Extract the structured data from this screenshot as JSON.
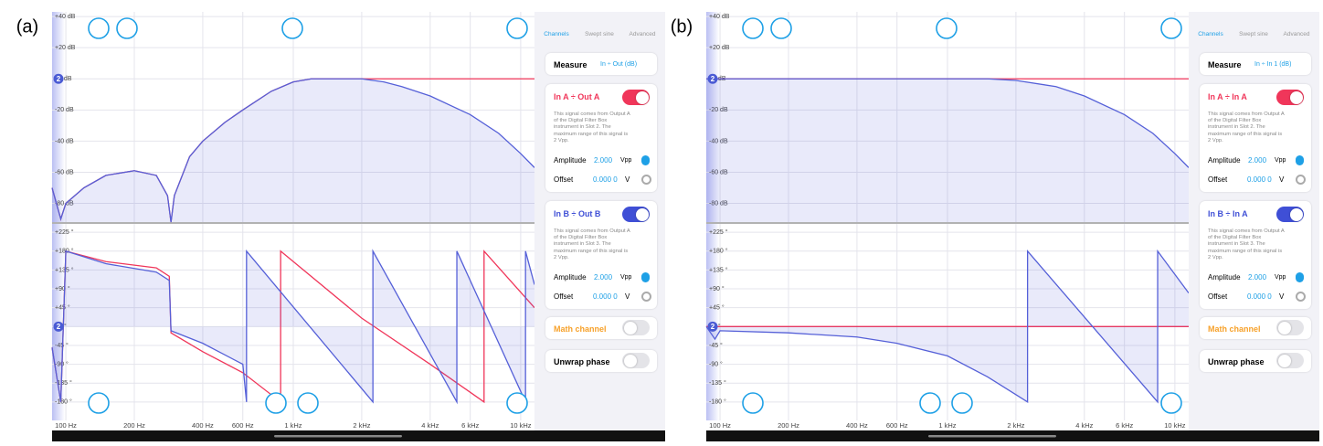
{
  "panels": [
    {
      "label": "(a)",
      "marker": "2",
      "magnitude": {
        "type": "line",
        "x_scale": "log",
        "xlim": [
          87,
          11500
        ],
        "ylim": [
          -92,
          43
        ],
        "grid": true,
        "yticks": [
          {
            "value": 40,
            "label": "+40 dB"
          },
          {
            "value": 20,
            "label": "+20 dB"
          },
          {
            "value": 0,
            "label": "+0 dB"
          },
          {
            "value": -20,
            "label": "-20 dB"
          },
          {
            "value": -40,
            "label": "-40 dB"
          },
          {
            "value": -60,
            "label": "-60 dB"
          },
          {
            "value": -80,
            "label": "-80 dB"
          }
        ],
        "series": [
          {
            "color": "#f0365a",
            "x": [
              87,
              95,
              100,
              120,
              150,
              200,
              250,
              280,
              290,
              300,
              350,
              400,
              500,
              600,
              800,
              1000,
              1200,
              1500,
              2000,
              11500
            ],
            "values": [
              -70,
              -90,
              -80,
              -70,
              -62,
              -59,
              -62,
              -75,
              -92,
              -75,
              -50,
              -40,
              -28,
              -20,
              -8,
              -2,
              0,
              0,
              0,
              0
            ]
          },
          {
            "color": "#5560d8",
            "fill": "bottom",
            "x": [
              87,
              95,
              100,
              120,
              150,
              200,
              250,
              280,
              290,
              300,
              350,
              400,
              500,
              600,
              800,
              1000,
              1200,
              1500,
              2000,
              2500,
              3000,
              4000,
              6000,
              8000,
              10000,
              11500
            ],
            "values": [
              -70,
              -90,
              -80,
              -70,
              -62,
              -59,
              -62,
              -75,
              -92,
              -75,
              -50,
              -40,
              -28,
              -20,
              -8,
              -2,
              0,
              0,
              0,
              -2,
              -5,
              -11,
              -23,
              -35,
              -48,
              -57
            ]
          }
        ]
      },
      "phase": {
        "type": "line",
        "x_scale": "log",
        "xlim": [
          87,
          11500
        ],
        "ylim": [
          -224,
          245
        ],
        "grid": true,
        "xticks": [
          {
            "value": 100,
            "label": "100 Hz"
          },
          {
            "value": 200,
            "label": "200 Hz"
          },
          {
            "value": 400,
            "label": "400 Hz"
          },
          {
            "value": 600,
            "label": "600 Hz"
          },
          {
            "value": 1000,
            "label": "1 kHz"
          },
          {
            "value": 2000,
            "label": "2 kHz"
          },
          {
            "value": 4000,
            "label": "4 kHz"
          },
          {
            "value": 6000,
            "label": "6 kHz"
          },
          {
            "value": 10000,
            "label": "10 kHz"
          }
        ],
        "yticks": [
          {
            "value": 225,
            "label": "+225 °"
          },
          {
            "value": 180,
            "label": "+180 °"
          },
          {
            "value": 135,
            "label": "+135 °"
          },
          {
            "value": 90,
            "label": "+90 °"
          },
          {
            "value": 45,
            "label": "+45 °"
          },
          {
            "value": 0,
            "label": "+0 °"
          },
          {
            "value": -45,
            "label": "-45 °"
          },
          {
            "value": -90,
            "label": "-90 °"
          },
          {
            "value": -135,
            "label": "-135 °"
          },
          {
            "value": -180,
            "label": "-180 °"
          }
        ],
        "series": [
          {
            "color": "#f0365a",
            "x": [
              87,
              95,
              100,
              150,
              250,
              285,
              290,
              400,
              600,
              880,
              880,
              2000,
              4000,
              6900,
              6900,
              11500
            ],
            "values": [
              -50,
              -180,
              180,
              155,
              140,
              120,
              -15,
              -60,
              -110,
              -180,
              180,
              20,
              -90,
              -180,
              180,
              45
            ]
          },
          {
            "color": "#5560d8",
            "fill": "zero",
            "x": [
              87,
              95,
              100,
              150,
              250,
              285,
              290,
              400,
              600,
              623,
              623,
              2240,
              2240,
              5240,
              5240,
              10500,
              10500,
              11500
            ],
            "values": [
              -50,
              -180,
              180,
              150,
              130,
              110,
              -10,
              -40,
              -90,
              -180,
              180,
              -180,
              180,
              -180,
              180,
              -180,
              180,
              100
            ]
          }
        ]
      },
      "sidebar": {
        "tabs": [
          "Channels",
          "Swept sine",
          "Advanced"
        ],
        "measure_label": "Measure",
        "measure_value": "In ÷ Out (dB)",
        "channels": [
          {
            "title": "In A ÷ Out A",
            "color": "#f0365a",
            "on": true,
            "description": [
              "This signal comes from Output A",
              "of the Digital Filter Box",
              "instrument in Slot 2. The",
              "maximum range of this signal is",
              "2 Vpp."
            ],
            "amplitude_label": "Amplitude",
            "amplitude": "2.000",
            "amplitude_unit": "Vpp",
            "offset_label": "Offset",
            "offset": "0.000 0",
            "offset_unit": "V"
          },
          {
            "title": "In B ÷ Out B",
            "color": "#3f4fd6",
            "on": true,
            "description": [
              "This signal comes from Output A",
              "of the Digital Filter Box",
              "instrument in Slot 3. The",
              "maximum range of this signal is",
              "2 Vpp."
            ],
            "amplitude_label": "Amplitude",
            "amplitude": "2.000",
            "amplitude_unit": "Vpp",
            "offset_label": "Offset",
            "offset": "0.000 0",
            "offset_unit": "V"
          }
        ],
        "math_label": "Math channel",
        "math_on": false,
        "unwrap_label": "Unwrap phase",
        "unwrap_on": false
      }
    },
    {
      "label": "(b)",
      "marker": "2",
      "magnitude": {
        "type": "line",
        "x_scale": "log",
        "xlim": [
          87,
          11500
        ],
        "ylim": [
          -92,
          43
        ],
        "grid": true,
        "yticks": [
          {
            "value": 40,
            "label": "+40 dB"
          },
          {
            "value": 20,
            "label": "+20 dB"
          },
          {
            "value": 0,
            "label": "+0 dB"
          },
          {
            "value": -20,
            "label": "-20 dB"
          },
          {
            "value": -40,
            "label": "-40 dB"
          },
          {
            "value": -60,
            "label": "-60 dB"
          },
          {
            "value": -80,
            "label": "-80 dB"
          }
        ],
        "series": [
          {
            "color": "#f0365a",
            "x": [
              87,
              11500
            ],
            "values": [
              0,
              0
            ]
          },
          {
            "color": "#5560d8",
            "fill": "bottom",
            "x": [
              87,
              1000,
              1500,
              2000,
              3000,
              4000,
              6000,
              8000,
              10000,
              11500
            ],
            "values": [
              0,
              0,
              0,
              -1,
              -5,
              -11,
              -23,
              -35,
              -48,
              -57
            ]
          }
        ]
      },
      "phase": {
        "type": "line",
        "x_scale": "log",
        "xlim": [
          87,
          11500
        ],
        "ylim": [
          -224,
          245
        ],
        "grid": true,
        "xticks": [
          {
            "value": 100,
            "label": "100 Hz"
          },
          {
            "value": 200,
            "label": "200 Hz"
          },
          {
            "value": 400,
            "label": "400 Hz"
          },
          {
            "value": 600,
            "label": "600 Hz"
          },
          {
            "value": 1000,
            "label": "1 kHz"
          },
          {
            "value": 2000,
            "label": "2 kHz"
          },
          {
            "value": 4000,
            "label": "4 kHz"
          },
          {
            "value": 6000,
            "label": "6 kHz"
          },
          {
            "value": 10000,
            "label": "10 kHz"
          }
        ],
        "yticks": [
          {
            "value": 225,
            "label": "+225 °"
          },
          {
            "value": 180,
            "label": "+180 °"
          },
          {
            "value": 135,
            "label": "+135 °"
          },
          {
            "value": 90,
            "label": "+90 °"
          },
          {
            "value": 45,
            "label": "+45 °"
          },
          {
            "value": 0,
            "label": "+0 °"
          },
          {
            "value": -45,
            "label": "-45 °"
          },
          {
            "value": -90,
            "label": "-90 °"
          },
          {
            "value": -135,
            "label": "-135 °"
          },
          {
            "value": -180,
            "label": "-180 °"
          }
        ],
        "series": [
          {
            "color": "#f0365a",
            "x": [
              87,
              11500
            ],
            "values": [
              0,
              0
            ]
          },
          {
            "color": "#5560d8",
            "fill": "zero",
            "x": [
              87,
              95,
              100,
              200,
              400,
              600,
              1000,
              1500,
              2250,
              2250,
              8400,
              8400,
              11500
            ],
            "values": [
              0,
              -30,
              -10,
              -15,
              -25,
              -40,
              -70,
              -120,
              -180,
              180,
              -180,
              180,
              80
            ]
          }
        ]
      },
      "sidebar": {
        "tabs": [
          "Channels",
          "Swept sine",
          "Advanced"
        ],
        "measure_label": "Measure",
        "measure_value": "In ÷ In 1 (dB)",
        "channels": [
          {
            "title": "In A ÷ In A",
            "color": "#f0365a",
            "on": true,
            "description": [
              "This signal comes from Output A",
              "of the Digital Filter Box",
              "instrument in Slot 2. The",
              "maximum range of this signal is",
              "2 Vpp."
            ],
            "amplitude_label": "Amplitude",
            "amplitude": "2.000",
            "amplitude_unit": "Vpp",
            "offset_label": "Offset",
            "offset": "0.000 0",
            "offset_unit": "V"
          },
          {
            "title": "In B ÷ In A",
            "color": "#3f4fd6",
            "on": true,
            "description": [
              "This signal comes from Output A",
              "of the Digital Filter Box",
              "instrument in Slot 3. The",
              "maximum range of this signal is",
              "2 Vpp."
            ],
            "amplitude_label": "Amplitude",
            "amplitude": "2.000",
            "amplitude_unit": "Vpp",
            "offset_label": "Offset",
            "offset": "0.000 0",
            "offset_unit": "V"
          }
        ],
        "math_label": "Math channel",
        "math_on": false,
        "unwrap_label": "Unwrap phase",
        "unwrap_on": false
      }
    }
  ]
}
